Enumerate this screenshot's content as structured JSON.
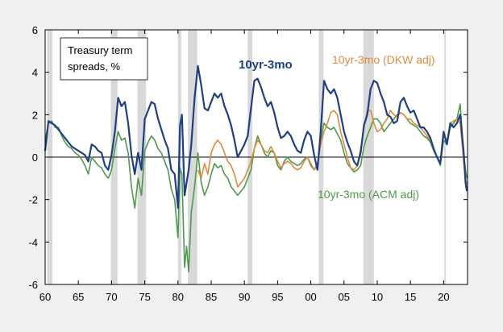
{
  "chart_data": {
    "type": "line",
    "title_box": [
      "Treasury term",
      "spreads, %"
    ],
    "xlabel": "",
    "ylabel": "",
    "xlim": [
      1960,
      2023.6
    ],
    "ylim": [
      -6,
      6
    ],
    "xticks": [
      {
        "value": 1960,
        "label": "60"
      },
      {
        "value": 1965,
        "label": "65"
      },
      {
        "value": 1970,
        "label": "70"
      },
      {
        "value": 1975,
        "label": "75"
      },
      {
        "value": 1980,
        "label": "80"
      },
      {
        "value": 1985,
        "label": "85"
      },
      {
        "value": 1990,
        "label": "90"
      },
      {
        "value": 1995,
        "label": "95"
      },
      {
        "value": 2000,
        "label": "00"
      },
      {
        "value": 2005,
        "label": "05"
      },
      {
        "value": 2010,
        "label": "10"
      },
      {
        "value": 2015,
        "label": "15"
      },
      {
        "value": 2020,
        "label": "20"
      }
    ],
    "yticks": [
      -6,
      -4,
      -2,
      0,
      2,
      4,
      6
    ],
    "zero_line": true,
    "recessions": [
      [
        1960.3,
        1961.1
      ],
      [
        1969.9,
        1970.9
      ],
      [
        1973.9,
        1975.2
      ],
      [
        1980.0,
        1980.5
      ],
      [
        1981.5,
        1982.9
      ],
      [
        1990.5,
        1991.2
      ],
      [
        2001.2,
        2001.9
      ],
      [
        2007.9,
        2009.5
      ],
      [
        2020.1,
        2020.3
      ]
    ],
    "colors": {
      "background": "#f0f0f0",
      "plot": "#ffffff",
      "recession": "#d9d9d9",
      "axis": "#000000"
    },
    "series": [
      {
        "name": "10yr-3mo",
        "color": "#1f3f87",
        "x": [
          1960.0,
          1960.5,
          1961.0,
          1961.5,
          1962.0,
          1962.5,
          1963.0,
          1963.5,
          1964.0,
          1964.5,
          1965.0,
          1965.5,
          1966.0,
          1966.5,
          1967.0,
          1967.5,
          1968.0,
          1968.5,
          1969.0,
          1969.5,
          1970.0,
          1970.5,
          1971.0,
          1971.5,
          1972.0,
          1972.5,
          1973.0,
          1973.5,
          1974.0,
          1974.5,
          1975.0,
          1975.5,
          1976.0,
          1976.5,
          1977.0,
          1977.5,
          1978.0,
          1978.5,
          1979.0,
          1979.5,
          1980.0,
          1980.3,
          1980.6,
          1981.0,
          1981.3,
          1981.6,
          1982.0,
          1982.5,
          1983.0,
          1983.5,
          1984.0,
          1984.5,
          1985.0,
          1985.5,
          1986.0,
          1986.5,
          1987.0,
          1987.5,
          1988.0,
          1988.5,
          1989.0,
          1989.5,
          1990.0,
          1990.5,
          1991.0,
          1991.5,
          1992.0,
          1992.5,
          1993.0,
          1993.5,
          1994.0,
          1994.5,
          1995.0,
          1995.5,
          1996.0,
          1996.5,
          1997.0,
          1997.5,
          1998.0,
          1998.5,
          1999.0,
          1999.5,
          2000.0,
          2000.5,
          2001.0,
          2001.5,
          2002.0,
          2002.5,
          2003.0,
          2003.5,
          2004.0,
          2004.5,
          2005.0,
          2005.5,
          2006.0,
          2006.5,
          2007.0,
          2007.5,
          2008.0,
          2008.5,
          2009.0,
          2009.5,
          2010.0,
          2010.5,
          2011.0,
          2011.5,
          2012.0,
          2012.5,
          2013.0,
          2013.5,
          2014.0,
          2014.5,
          2015.0,
          2015.5,
          2016.0,
          2016.5,
          2017.0,
          2017.5,
          2018.0,
          2018.5,
          2019.0,
          2019.5,
          2020.0,
          2020.5,
          2021.0,
          2021.5,
          2022.0,
          2022.5,
          2023.0,
          2023.3,
          2023.5
        ],
        "y": [
          0.3,
          1.7,
          1.6,
          1.5,
          1.3,
          1.1,
          0.9,
          0.7,
          0.5,
          0.4,
          0.3,
          0.2,
          0.1,
          -0.2,
          0.6,
          0.5,
          0.3,
          0.2,
          -0.4,
          -0.6,
          0.1,
          1.2,
          2.8,
          2.4,
          2.6,
          1.6,
          0.1,
          -0.8,
          0.2,
          -0.6,
          1.8,
          2.2,
          2.6,
          2.5,
          1.8,
          1.3,
          0.8,
          0.4,
          -0.6,
          -0.8,
          -2.4,
          1.5,
          2.0,
          -1.8,
          -1.2,
          -0.6,
          0.6,
          2.8,
          4.3,
          3.4,
          2.3,
          2.2,
          2.6,
          3.0,
          2.8,
          3.0,
          2.4,
          2.0,
          1.5,
          0.8,
          0.0,
          0.3,
          0.6,
          1.0,
          2.3,
          3.6,
          3.7,
          3.3,
          2.8,
          2.4,
          2.6,
          2.1,
          1.4,
          0.9,
          1.0,
          1.2,
          1.0,
          0.6,
          0.3,
          0.2,
          0.8,
          1.2,
          1.0,
          0.1,
          -0.6,
          1.2,
          3.6,
          3.2,
          3.0,
          3.2,
          2.8,
          2.0,
          1.2,
          0.7,
          0.3,
          -0.2,
          -0.4,
          0.2,
          1.5,
          2.0,
          3.2,
          3.6,
          3.5,
          3.0,
          2.6,
          2.0,
          1.9,
          1.6,
          1.7,
          2.6,
          2.8,
          2.4,
          2.1,
          2.2,
          1.8,
          1.4,
          1.4,
          1.2,
          0.9,
          0.4,
          0.0,
          -0.3,
          1.2,
          0.6,
          1.6,
          1.4,
          1.6,
          2.0,
          0.3,
          -1.2,
          -1.6
        ]
      },
      {
        "name": "10yr-3mo (DKW adj)",
        "color": "#e08a3c",
        "x": [
          1983.0,
          1983.5,
          1984.0,
          1984.5,
          1985.0,
          1985.5,
          1986.0,
          1986.5,
          1987.0,
          1987.5,
          1988.0,
          1988.5,
          1989.0,
          1989.5,
          1990.0,
          1990.5,
          1991.0,
          1991.5,
          1992.0,
          1992.5,
          1993.0,
          1993.5,
          1994.0,
          1994.5,
          1995.0,
          1995.5,
          1996.0,
          1996.5,
          1997.0,
          1997.5,
          1998.0,
          1998.5,
          1999.0,
          1999.5,
          2000.0,
          2000.5,
          2001.0,
          2001.5,
          2002.0,
          2002.5,
          2003.0,
          2003.5,
          2004.0,
          2004.5,
          2005.0,
          2005.5,
          2006.0,
          2006.5,
          2007.0,
          2007.5,
          2008.0,
          2008.5,
          2009.0,
          2009.5,
          2010.0,
          2010.5,
          2011.0,
          2011.5,
          2012.0,
          2012.5,
          2013.0,
          2013.5,
          2014.0,
          2014.5,
          2015.0,
          2015.5,
          2016.0,
          2016.5,
          2017.0,
          2017.5,
          2018.0,
          2018.5,
          2019.0,
          2019.5,
          2020.0,
          2020.5,
          2021.0,
          2021.5,
          2022.0,
          2022.5,
          2023.0,
          2023.3,
          2023.5
        ],
        "y": [
          -0.6,
          -1.0,
          -0.3,
          -0.8,
          0.2,
          0.6,
          0.8,
          0.6,
          0.2,
          -0.2,
          -0.4,
          -0.8,
          -1.4,
          -1.2,
          -1.0,
          -0.6,
          -0.2,
          0.4,
          0.8,
          0.6,
          0.3,
          0.2,
          0.5,
          0.2,
          -0.2,
          -0.5,
          -0.3,
          -0.2,
          -0.3,
          -0.5,
          -0.6,
          -0.5,
          -0.2,
          0.0,
          -0.3,
          -0.6,
          -0.3,
          0.6,
          1.2,
          1.6,
          2.1,
          2.2,
          2.0,
          1.2,
          0.6,
          0.0,
          -0.5,
          -0.6,
          -0.4,
          0.4,
          1.4,
          2.2,
          2.2,
          1.6,
          1.2,
          1.3,
          1.6,
          1.8,
          2.2,
          2.0,
          1.9,
          2.1,
          2.0,
          1.8,
          1.8,
          1.6,
          1.5,
          1.4,
          1.2,
          1.0,
          0.8,
          0.4,
          0.0,
          -0.3,
          1.0,
          0.8,
          1.6,
          1.7,
          1.8,
          1.6,
          -0.2,
          -1.0,
          -1.3
        ]
      },
      {
        "name": "10yr-3mo (ACM adj)",
        "color": "#4e9a4a",
        "x": [
          1960.0,
          1960.5,
          1961.0,
          1961.5,
          1962.0,
          1962.5,
          1963.0,
          1963.5,
          1964.0,
          1964.5,
          1965.0,
          1965.5,
          1966.0,
          1966.5,
          1967.0,
          1967.5,
          1968.0,
          1968.5,
          1969.0,
          1969.5,
          1970.0,
          1970.5,
          1971.0,
          1971.5,
          1972.0,
          1972.5,
          1973.0,
          1973.5,
          1974.0,
          1974.5,
          1975.0,
          1975.5,
          1976.0,
          1976.5,
          1977.0,
          1977.5,
          1978.0,
          1978.5,
          1979.0,
          1979.5,
          1980.0,
          1980.3,
          1980.6,
          1981.0,
          1981.3,
          1981.6,
          1982.0,
          1982.5,
          1983.0,
          1983.5,
          1984.0,
          1984.5,
          1985.0,
          1985.5,
          1986.0,
          1986.5,
          1987.0,
          1987.5,
          1988.0,
          1988.5,
          1989.0,
          1989.5,
          1990.0,
          1990.5,
          1991.0,
          1991.5,
          1992.0,
          1992.5,
          1993.0,
          1993.5,
          1994.0,
          1994.5,
          1995.0,
          1995.5,
          1996.0,
          1996.5,
          1997.0,
          1997.5,
          1998.0,
          1998.5,
          1999.0,
          1999.5,
          2000.0,
          2000.5,
          2001.0,
          2001.5,
          2002.0,
          2002.5,
          2003.0,
          2003.5,
          2004.0,
          2004.5,
          2005.0,
          2005.5,
          2006.0,
          2006.5,
          2007.0,
          2007.5,
          2008.0,
          2008.5,
          2009.0,
          2009.5,
          2010.0,
          2010.5,
          2011.0,
          2011.5,
          2012.0,
          2012.5,
          2013.0,
          2013.5,
          2014.0,
          2014.5,
          2015.0,
          2015.5,
          2016.0,
          2016.5,
          2017.0,
          2017.5,
          2018.0,
          2018.5,
          2019.0,
          2019.5,
          2020.0,
          2020.5,
          2021.0,
          2021.5,
          2022.0,
          2022.5,
          2023.0,
          2023.3,
          2023.5
        ],
        "y": [
          0.8,
          1.6,
          1.7,
          1.4,
          1.4,
          1.0,
          0.7,
          0.5,
          0.4,
          0.2,
          0.1,
          -0.1,
          -0.4,
          -0.8,
          0.0,
          -0.2,
          -0.4,
          -0.5,
          -0.8,
          -1.0,
          -0.6,
          0.4,
          1.2,
          0.8,
          0.9,
          0.2,
          -1.4,
          -2.4,
          -1.0,
          -1.8,
          0.3,
          0.7,
          1.0,
          0.8,
          0.4,
          0.2,
          -0.2,
          -0.6,
          -1.5,
          -2.0,
          -3.8,
          -0.5,
          -0.8,
          -5.2,
          -4.2,
          -5.4,
          -2.6,
          -1.4,
          0.2,
          -1.2,
          -1.8,
          -1.4,
          -0.8,
          -0.3,
          -0.5,
          -0.4,
          -0.8,
          -1.0,
          -1.4,
          -1.6,
          -1.8,
          -1.6,
          -1.4,
          -1.0,
          -0.6,
          0.4,
          1.0,
          0.6,
          0.2,
          0.0,
          0.3,
          0.2,
          -0.4,
          -0.6,
          -0.2,
          0.0,
          -0.2,
          -0.3,
          -0.4,
          -0.3,
          -0.1,
          0.0,
          -0.4,
          -0.6,
          -0.4,
          0.8,
          1.6,
          1.4,
          1.3,
          1.4,
          1.1,
          0.8,
          0.2,
          -0.3,
          -0.5,
          -0.7,
          -0.6,
          -0.4,
          0.5,
          1.0,
          1.4,
          1.8,
          1.8,
          1.6,
          1.2,
          1.4,
          1.6,
          1.8,
          2.0,
          2.1,
          2.0,
          1.8,
          1.6,
          1.5,
          1.4,
          1.2,
          1.0,
          0.9,
          0.7,
          0.3,
          0.0,
          -0.4,
          0.8,
          0.6,
          1.4,
          1.6,
          1.8,
          2.5,
          0.2,
          -0.6,
          -1.0
        ]
      }
    ],
    "annotations": [
      {
        "text": "10yr-3mo",
        "series": 0
      },
      {
        "text": "10yr-3mo (DKW adj)",
        "series": 1
      },
      {
        "text": "10yr-3mo (ACM adj)",
        "series": 2
      }
    ]
  }
}
